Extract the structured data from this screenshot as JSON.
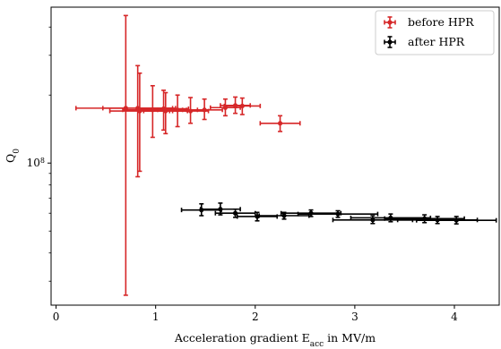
{
  "chart_data": {
    "type": "scatter",
    "xlabel": "Acceleration gradient E",
    "xlabel_subscript": "acc",
    "xlabel_suffix": "  in MV/m",
    "ylabel": "Q",
    "ylabel_subscript": "0",
    "xlim": [
      -0.05,
      4.45
    ],
    "ylim": [
      23500000.0,
      490000000.0
    ],
    "yscale": "log",
    "x_ticks": [
      0,
      1,
      2,
      3,
      4
    ],
    "x_tick_labels": [
      "0",
      "1",
      "2",
      "3",
      "4"
    ],
    "y_tick_labels": [
      {
        "value": 100000000.0,
        "base": "10",
        "exp": "8"
      }
    ],
    "y_minor_ticks": [
      30000000.0,
      40000000.0,
      50000000.0,
      60000000.0,
      70000000.0,
      80000000.0,
      90000000.0,
      200000000.0,
      300000000.0,
      400000000.0
    ],
    "grid": false,
    "legend_position": "top-right",
    "series": [
      {
        "name": "before HPR",
        "color": "#d62728",
        "points": [
          {
            "x": 0.7,
            "y": 175000000.0,
            "xerr": 0.5,
            "ylo": 26000000.0,
            "yhi": 450000000.0
          },
          {
            "x": 0.82,
            "y": 175000000.0,
            "xerr": 0.35,
            "ylo": 87000000.0,
            "yhi": 270000000.0
          },
          {
            "x": 0.84,
            "y": 170000000.0,
            "xerr": 0.3,
            "ylo": 92000000.0,
            "yhi": 250000000.0
          },
          {
            "x": 0.97,
            "y": 172000000.0,
            "xerr": 0.3,
            "ylo": 130000000.0,
            "yhi": 220000000.0
          },
          {
            "x": 1.08,
            "y": 174000000.0,
            "xerr": 0.25,
            "ylo": 140000000.0,
            "yhi": 210000000.0
          },
          {
            "x": 1.1,
            "y": 170000000.0,
            "xerr": 0.22,
            "ylo": 135000000.0,
            "yhi": 205000000.0
          },
          {
            "x": 1.22,
            "y": 172000000.0,
            "xerr": 0.2,
            "ylo": 145000000.0,
            "yhi": 200000000.0
          },
          {
            "x": 1.35,
            "y": 170000000.0,
            "xerr": 0.18,
            "ylo": 150000000.0,
            "yhi": 195000000.0
          },
          {
            "x": 1.49,
            "y": 172000000.0,
            "xerr": 0.18,
            "ylo": 156000000.0,
            "yhi": 192000000.0
          },
          {
            "x": 1.7,
            "y": 176000000.0,
            "xerr": 0.15,
            "ylo": 162000000.0,
            "yhi": 192000000.0
          },
          {
            "x": 1.8,
            "y": 180000000.0,
            "xerr": 0.15,
            "ylo": 166000000.0,
            "yhi": 196000000.0
          },
          {
            "x": 1.87,
            "y": 179000000.0,
            "xerr": 0.18,
            "ylo": 164000000.0,
            "yhi": 194000000.0
          },
          {
            "x": 2.25,
            "y": 150000000.0,
            "xerr": 0.2,
            "ylo": 138000000.0,
            "yhi": 162000000.0
          }
        ]
      },
      {
        "name": "after HPR",
        "color": "#000000",
        "points": [
          {
            "x": 1.46,
            "y": 62000000.0,
            "xerr": 0.2,
            "ylo": 58500000.0,
            "yhi": 66000000.0
          },
          {
            "x": 1.65,
            "y": 62500000.0,
            "xerr": 0.2,
            "ylo": 59000000.0,
            "yhi": 66500000.0
          },
          {
            "x": 1.8,
            "y": 60000000.0,
            "xerr": 0.2,
            "ylo": 57500000.0,
            "yhi": 62500000.0
          },
          {
            "x": 2.02,
            "y": 58000000.0,
            "xerr": 0.2,
            "ylo": 55500000.0,
            "yhi": 60500000.0
          },
          {
            "x": 2.29,
            "y": 58500000.0,
            "xerr": 0.25,
            "ylo": 56500000.0,
            "yhi": 60500000.0
          },
          {
            "x": 2.56,
            "y": 60000000.0,
            "xerr": 0.3,
            "ylo": 58000000.0,
            "yhi": 62000000.0
          },
          {
            "x": 2.83,
            "y": 59500000.0,
            "xerr": 0.4,
            "ylo": 57500000.0,
            "yhi": 61500000.0
          },
          {
            "x": 3.18,
            "y": 56000000.0,
            "xerr": 0.4,
            "ylo": 54000000.0,
            "yhi": 58500000.0
          },
          {
            "x": 3.36,
            "y": 57200000.0,
            "xerr": 0.4,
            "ylo": 55000000.0,
            "yhi": 59500000.0
          },
          {
            "x": 3.7,
            "y": 56800000.0,
            "xerr": 0.4,
            "ylo": 54500000.0,
            "yhi": 59000000.0
          },
          {
            "x": 3.83,
            "y": 56000000.0,
            "xerr": 0.4,
            "ylo": 54000000.0,
            "yhi": 58000000.0
          },
          {
            "x": 4.02,
            "y": 55800000.0,
            "xerr": 0.4,
            "ylo": 53800000.0,
            "yhi": 58000000.0
          }
        ]
      }
    ]
  }
}
